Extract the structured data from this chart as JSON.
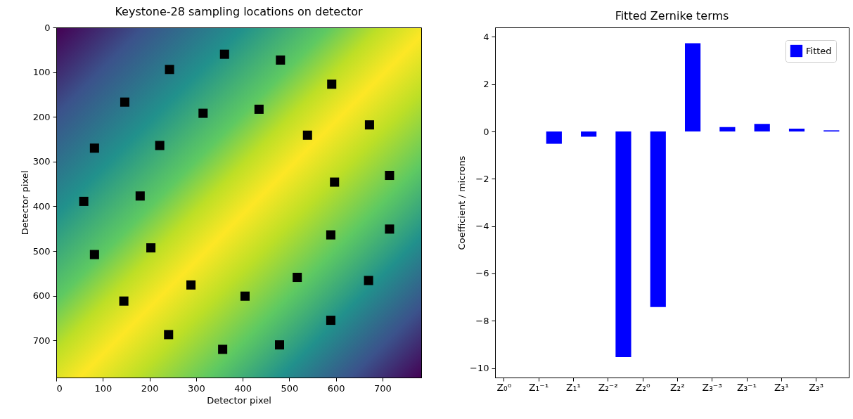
{
  "chart_data": [
    {
      "type": "scatter",
      "title": "Keystone-28 sampling locations on detector",
      "xlabel": "Detector pixel",
      "ylabel": "Detector pixel",
      "marker": "square",
      "color": "#000000",
      "x": [
        361,
        481,
        243,
        147,
        315,
        435,
        82,
        222,
        59,
        180,
        82,
        203,
        289,
        145,
        405,
        241,
        357,
        479,
        591,
        672,
        539,
        715,
        597,
        589,
        715,
        517,
        670,
        589
      ],
      "values": [
        60,
        73,
        94,
        167,
        192,
        183,
        270,
        264,
        389,
        377,
        508,
        493,
        576,
        612,
        601,
        687,
        720,
        710,
        127,
        218,
        241,
        331,
        346,
        464,
        451,
        559,
        566,
        655
      ],
      "xlim": [
        0,
        783
      ],
      "ylim": [
        783,
        0
      ],
      "xticks": [
        0,
        100,
        200,
        300,
        400,
        500,
        600,
        700
      ],
      "yticks": [
        0,
        100,
        200,
        300,
        400,
        500,
        600,
        700
      ]
    },
    {
      "type": "bar",
      "title": "Fitted Zernike terms",
      "ylabel": "Coefficient / microns",
      "legend": "top right",
      "categories": [
        "Z₀⁰",
        "Z₁⁻¹",
        "Z₁¹",
        "Z₂⁻²",
        "Z₂⁰",
        "Z₂²",
        "Z₃⁻³",
        "Z₃⁻¹",
        "Z₃¹",
        "Z₃³"
      ],
      "series": [
        {
          "name": "Fitted",
          "color": "#0000ff",
          "values": [
            null,
            -0.52,
            -0.22,
            -9.54,
            -7.42,
            3.73,
            0.19,
            0.32,
            0.12,
            0.05
          ]
        }
      ],
      "ylim": [
        -10.4,
        4.4
      ],
      "yticks": [
        -10,
        -8,
        -6,
        -4,
        -2,
        0,
        2,
        4
      ]
    }
  ]
}
